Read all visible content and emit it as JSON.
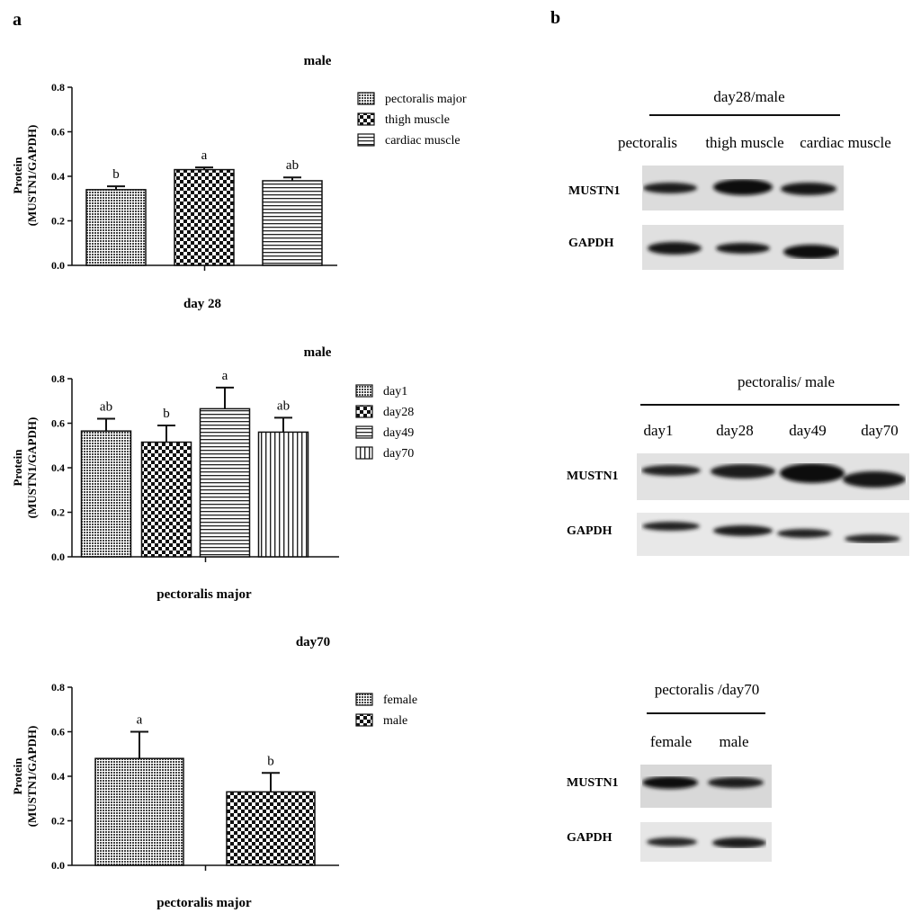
{
  "panels": {
    "a_label": "a",
    "b_label": "b"
  },
  "chart_data": [
    {
      "type": "bar",
      "title": "male",
      "xlabel": "day 28",
      "ylabel_line1": "Protein",
      "ylabel_line2": "(MUSTN1/GAPDH)",
      "ylim": [
        0,
        0.8
      ],
      "yticks": [
        "0.0",
        "0.2",
        "0.4",
        "0.6",
        "0.8"
      ],
      "legend_position": "right",
      "categories": [
        "pectoralis major",
        "thigh muscle",
        "cardiac muscle"
      ],
      "values": [
        0.34,
        0.43,
        0.38
      ],
      "errors": [
        0.015,
        0.01,
        0.015
      ],
      "significance": [
        "b",
        "a",
        "ab"
      ],
      "patterns": [
        "fine",
        "check",
        "hstripe"
      ]
    },
    {
      "type": "bar",
      "title": "male",
      "xlabel": "pectoralis major",
      "ylabel_line1": "Protein",
      "ylabel_line2": "(MUSTN1/GAPDH)",
      "ylim": [
        0,
        0.8
      ],
      "yticks": [
        "0.0",
        "0.2",
        "0.4",
        "0.6",
        "0.8"
      ],
      "legend_position": "right",
      "categories": [
        "day1",
        "day28",
        "day49",
        "day70"
      ],
      "values": [
        0.565,
        0.515,
        0.665,
        0.56
      ],
      "errors": [
        0.055,
        0.075,
        0.095,
        0.065
      ],
      "significance": [
        "ab",
        "b",
        "a",
        "ab"
      ],
      "patterns": [
        "fine",
        "check",
        "hstripe",
        "vstripe"
      ]
    },
    {
      "type": "bar",
      "title": "day70",
      "xlabel": "pectoralis major",
      "ylabel_line1": "Protein",
      "ylabel_line2": "(MUSTN1/GAPDH)",
      "ylim": [
        0,
        0.8
      ],
      "yticks": [
        "0.0",
        "0.2",
        "0.4",
        "0.6",
        "0.8"
      ],
      "legend_position": "right",
      "categories": [
        "female",
        "male"
      ],
      "values": [
        0.48,
        0.33
      ],
      "errors": [
        0.12,
        0.085
      ],
      "significance": [
        "a",
        "b"
      ],
      "patterns": [
        "fine",
        "check"
      ]
    }
  ],
  "blots": [
    {
      "title": "day28/male",
      "lanes": [
        "pectoralis",
        "thigh muscle",
        "cardiac muscle"
      ],
      "rows": [
        "MUSTN1",
        "GAPDH"
      ]
    },
    {
      "title": "pectoralis/ male",
      "lanes": [
        "day1",
        "day28",
        "day49",
        "day70"
      ],
      "rows": [
        "MUSTN1",
        "GAPDH"
      ]
    },
    {
      "title": "pectoralis /day70",
      "lanes": [
        "female",
        "male"
      ],
      "rows": [
        "MUSTN1",
        "GAPDH"
      ]
    }
  ]
}
